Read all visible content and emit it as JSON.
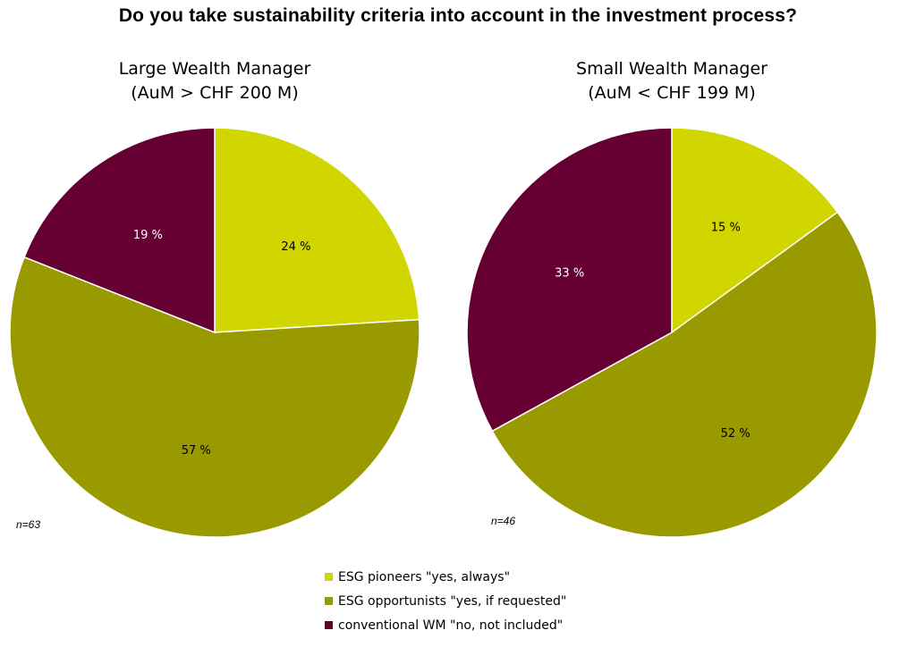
{
  "chart_data": {
    "title": "Do you take sustainability criteria into account in the investment process?",
    "type": "pie",
    "categories": [
      "ESG pioneers \"yes, always\"",
      "ESG opportunists \"yes, if requested\"",
      "conventional WM \"no, not included\""
    ],
    "colors": [
      "#d1d600",
      "#999900",
      "#660033"
    ],
    "legend_position": "bottom",
    "charts": [
      {
        "title_line1": "Large Wealth Manager",
        "title_line2": "(AuM > CHF 200 M)",
        "values": [
          24,
          57,
          19
        ],
        "labels": [
          "24 %",
          "57 %",
          "19 %"
        ],
        "note": "n=63"
      },
      {
        "title_line1": "Small Wealth Manager",
        "title_line2": "(AuM < CHF 199 M)",
        "values": [
          15,
          52,
          33
        ],
        "labels": [
          "15 %",
          "52 %",
          "33 %"
        ],
        "note": "n=46"
      }
    ]
  }
}
